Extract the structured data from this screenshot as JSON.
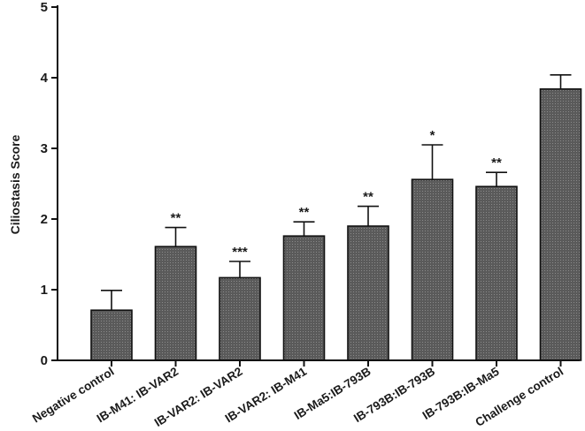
{
  "chart_data": {
    "type": "bar",
    "ylabel": "Ciliostasis Score",
    "xlabel": "",
    "ylim": [
      0,
      5
    ],
    "yticks": [
      "0",
      "1",
      "2",
      "3",
      "4",
      "5"
    ],
    "grid": false,
    "colors": {
      "bar_fill": "#555555",
      "bar_stroke": "#111111",
      "axis": "#111111"
    },
    "categories": [
      "Negative control",
      "IB-M41: IB-VAR2",
      "IB-VAR2: IB-VAR2",
      "IB-VAR2: IB-M41",
      "IB-Ma5:IB-793B",
      "IB-793B:IB-793B",
      "IB-793B:IB-Ma5",
      "Challenge control"
    ],
    "values": [
      0.71,
      1.61,
      1.17,
      1.76,
      1.9,
      2.56,
      2.46,
      3.84
    ],
    "errors": [
      0.28,
      0.27,
      0.23,
      0.2,
      0.28,
      0.49,
      0.2,
      0.2
    ],
    "significance": [
      "",
      "**",
      "***",
      "**",
      "**",
      "*",
      "**",
      ""
    ]
  }
}
